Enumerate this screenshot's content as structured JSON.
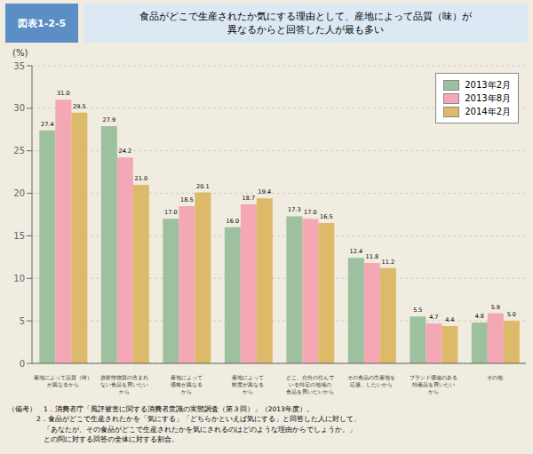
{
  "chart_data": {
    "type": "bar",
    "title": "図表1-2-5",
    "subtitle": "食品がどこで生産されたか気にする理由として、産地によって品質（味）が\n異なるからと回答した人が最も多い",
    "ylabel": "(%)",
    "categories": [
      "産地によって品質（味）\nが異なるから",
      "放射性物質の含まれ\nない食品を買いたい\nから",
      "産地によって\n価格が異なる\nから",
      "産地によって\n鮮度が異なる\nから",
      "どこ、自分の住んで\nいる特定の地域の\n食品を買いたいから",
      "その食品の生産地を\n応援、したいから",
      "ブランド価値のある\n特産品を買いたい\nから",
      "その他"
    ],
    "series": [
      {
        "name": "2013年2月",
        "color": "#9dc09e",
        "values": [
          27.4,
          27.9,
          17.0,
          16.0,
          17.3,
          12.4,
          5.5,
          4.8
        ],
        "value_labels": [
          "27.4",
          "27.9",
          "17.0",
          "16.0",
          "17.3",
          "12.4",
          "5.5",
          "4.8"
        ]
      },
      {
        "name": "2013年8月",
        "color": "#f4a8b5",
        "values": [
          31.0,
          24.2,
          18.5,
          18.7,
          17.0,
          11.8,
          4.7,
          5.9
        ],
        "value_labels": [
          "31.0",
          "24.2",
          "18.5",
          "18.7",
          "17.0",
          "11.8",
          "4.7",
          "5.9"
        ]
      },
      {
        "name": "2014年2月",
        "color": "#ddb96a",
        "values": [
          29.5,
          21.0,
          20.1,
          19.4,
          16.5,
          11.2,
          4.4,
          5.0
        ],
        "value_labels": [
          "29.5",
          "21.0",
          "20.1",
          "19.4",
          "16.5",
          "11.2",
          "4.4",
          "5.0"
        ]
      }
    ],
    "ylim": [
      0,
      35
    ],
    "yticks": [
      0,
      5,
      10,
      15,
      20,
      25,
      30,
      35
    ],
    "grid": true,
    "legend": "upper right",
    "data_labels": true,
    "annotations": [
      "（備考）　1．消費者庁「風評被害に関する消費者意識の実態調査（第３回）」（2013年度）。",
      "　　　　2．食品がどこで生産されたかを「気にする」「どちらかといえば気にする」と回答した人に対して、",
      "　　　　　「あなたが、その食品がどこで生産されたかを気にされるのはどのような理由からでしょうか。」",
      "　　　　　との問に対する回答の全体に対する割合。"
    ]
  }
}
